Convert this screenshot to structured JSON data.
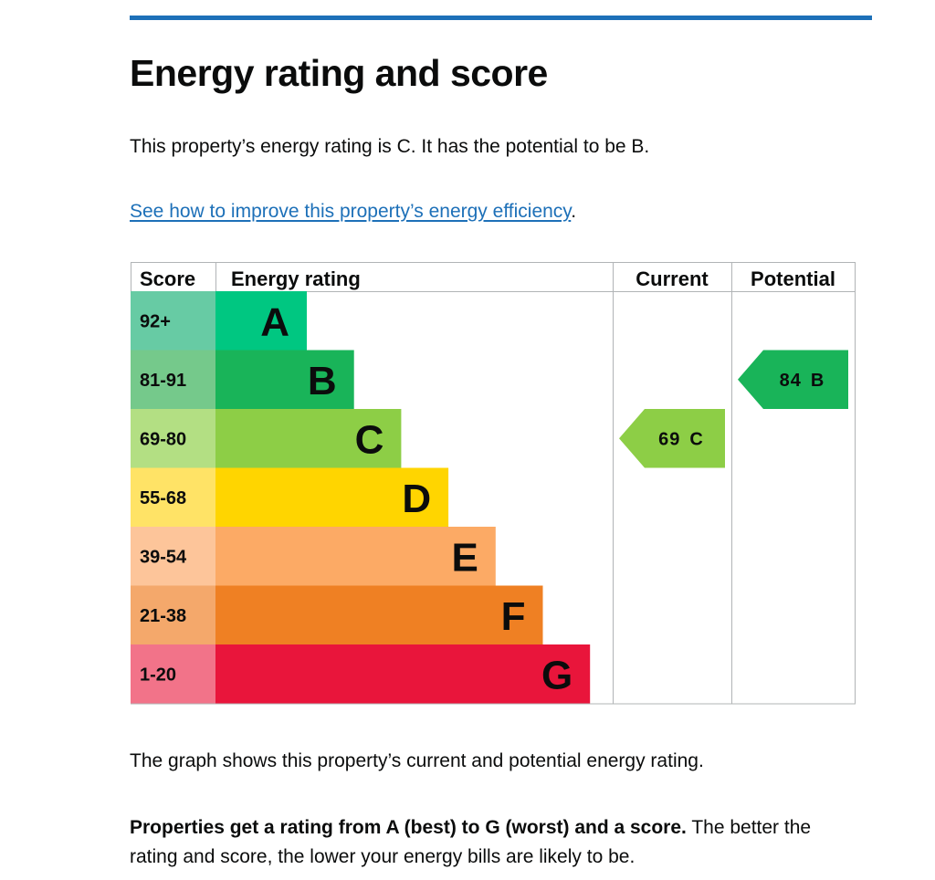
{
  "page": {
    "title": "Energy rating and score",
    "summary": "This property’s energy rating is C. It has the potential to be B.",
    "improve_link": "See how to improve this property’s energy efficiency",
    "improve_suffix": ".",
    "caption": "The graph shows this property’s current and potential energy rating.",
    "explain_bold": "Properties get a rating from A (best) to G (worst) and a score.",
    "explain_rest": " The better the rating and score, the lower your energy bills are likely to be."
  },
  "colors": {
    "accent": "#1d70b8",
    "link": "#1d70b8"
  },
  "chart_data": {
    "type": "table",
    "headers": {
      "score": "Score",
      "rating": "Energy rating",
      "current": "Current",
      "potential": "Potential"
    },
    "bands": [
      {
        "letter": "A",
        "range": "92+",
        "color": "#00c781",
        "score_color": "#67cba4"
      },
      {
        "letter": "B",
        "range": "81-91",
        "color": "#19b459",
        "score_color": "#75c98b"
      },
      {
        "letter": "C",
        "range": "69-80",
        "color": "#8dce46",
        "score_color": "#b3df83"
      },
      {
        "letter": "D",
        "range": "55-68",
        "color": "#ffd500",
        "score_color": "#ffe366"
      },
      {
        "letter": "E",
        "range": "39-54",
        "color": "#fcaa65",
        "score_color": "#fdc59a"
      },
      {
        "letter": "F",
        "range": "21-38",
        "color": "#ef8023",
        "score_color": "#f4a86b"
      },
      {
        "letter": "G",
        "range": "1-20",
        "color": "#e9153b",
        "score_color": "#f27389"
      }
    ],
    "current": {
      "score": "69",
      "letter": "C",
      "band_index": 2,
      "color": "#8dce46"
    },
    "potential": {
      "score": "84",
      "letter": "B",
      "band_index": 1,
      "color": "#19b459"
    }
  }
}
